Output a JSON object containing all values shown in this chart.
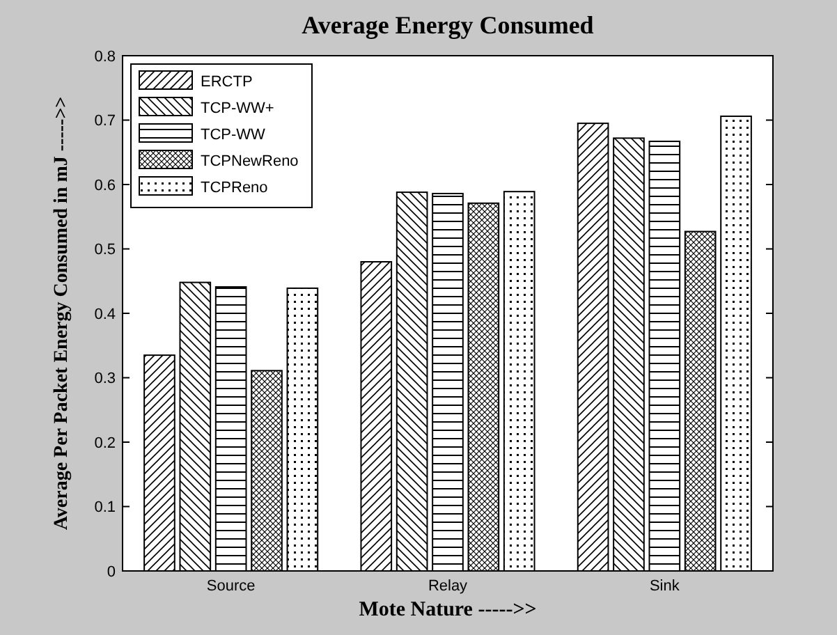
{
  "chart_data": {
    "type": "bar",
    "title": "Average Energy Consumed",
    "xlabel": "Mote Nature ----->>",
    "ylabel": "Average Per Packet Energy Consumed in mJ ----->>",
    "categories": [
      "Source",
      "Relay",
      "Sink"
    ],
    "series": [
      {
        "name": "ERCTP",
        "color": "#000000",
        "values": [
          0.335,
          0.48,
          0.695
        ]
      },
      {
        "name": "TCP-WW+",
        "color": "#000000",
        "values": [
          0.448,
          0.588,
          0.672
        ]
      },
      {
        "name": "TCP-WW",
        "color": "#000000",
        "values": [
          0.441,
          0.586,
          0.667
        ]
      },
      {
        "name": "TCPNewReno",
        "color": "#000000",
        "values": [
          0.311,
          0.571,
          0.527
        ]
      },
      {
        "name": "TCPReno",
        "color": "#000000",
        "values": [
          0.439,
          0.589,
          0.706
        ]
      }
    ],
    "ylim": [
      0,
      0.8
    ],
    "yticks": [
      0,
      0.1,
      0.2,
      0.3,
      0.4,
      0.5,
      0.6,
      0.7,
      0.8
    ],
    "legend": "top left",
    "grid": false
  }
}
